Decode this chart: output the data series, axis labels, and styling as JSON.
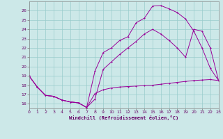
{
  "background_color": "#cce8e8",
  "line_color": "#990099",
  "grid_color": "#99cccc",
  "xlabel": "Windchill (Refroidissement éolien,°C)",
  "xlim": [
    0,
    23
  ],
  "ylim": [
    15.5,
    27.0
  ],
  "yticks": [
    16,
    17,
    18,
    19,
    20,
    21,
    22,
    23,
    24,
    25,
    26
  ],
  "xticks": [
    0,
    1,
    2,
    3,
    4,
    5,
    6,
    7,
    8,
    9,
    10,
    11,
    12,
    13,
    14,
    15,
    16,
    17,
    18,
    19,
    20,
    21,
    22,
    23
  ],
  "series_lower_x": [
    0,
    1,
    2,
    3,
    4,
    5,
    6,
    7,
    8,
    9,
    10,
    11,
    12,
    13,
    14,
    15,
    16,
    17,
    18,
    19,
    20,
    21,
    22,
    23
  ],
  "series_lower_y": [
    19.0,
    17.8,
    16.9,
    16.8,
    16.4,
    16.2,
    16.1,
    15.6,
    17.1,
    17.5,
    17.7,
    17.8,
    17.85,
    17.9,
    17.95,
    18.0,
    18.1,
    18.2,
    18.3,
    18.4,
    18.5,
    18.55,
    18.6,
    18.5
  ],
  "series_upper_x": [
    0,
    1,
    2,
    3,
    4,
    5,
    6,
    7,
    8,
    9,
    10,
    11,
    12,
    13,
    14,
    15,
    16,
    17,
    18,
    19,
    20,
    21,
    22,
    23
  ],
  "series_upper_y": [
    19.0,
    17.8,
    16.9,
    16.8,
    16.4,
    16.2,
    16.1,
    15.6,
    19.5,
    21.5,
    22.0,
    22.8,
    23.2,
    24.7,
    25.2,
    26.5,
    26.55,
    26.2,
    25.8,
    25.1,
    23.8,
    22.0,
    19.8,
    18.5
  ],
  "series_diag_x": [
    0,
    1,
    2,
    3,
    4,
    5,
    6,
    7,
    8,
    9,
    10,
    11,
    12,
    13,
    14,
    15,
    16,
    17,
    18,
    19,
    20,
    21,
    22,
    23
  ],
  "series_diag_y": [
    19.0,
    17.8,
    16.9,
    16.8,
    16.4,
    16.2,
    16.1,
    15.6,
    16.5,
    19.7,
    20.5,
    21.3,
    22.0,
    22.7,
    23.5,
    24.0,
    23.5,
    22.8,
    22.0,
    21.0,
    24.0,
    23.8,
    22.0,
    18.5
  ]
}
